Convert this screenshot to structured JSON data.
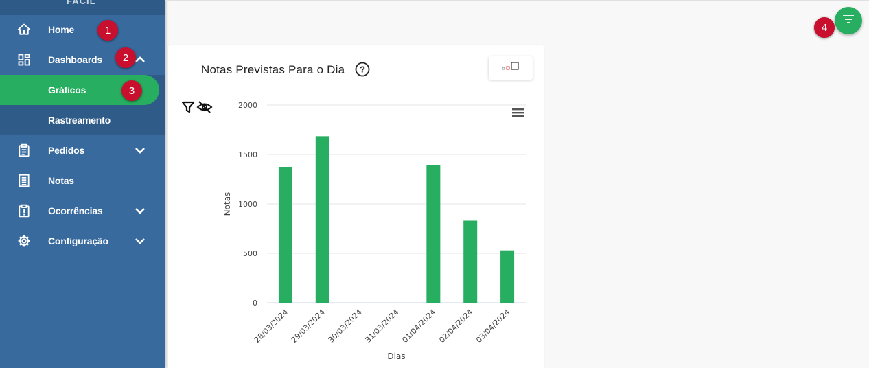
{
  "sidebar": {
    "brand": "FACIL",
    "items": [
      {
        "label": "Home",
        "icon": "home-icon"
      },
      {
        "label": "Dashboards",
        "icon": "dashboard-icon"
      },
      {
        "label": "Pedidos",
        "icon": "clipboard-icon"
      },
      {
        "label": "Notas",
        "icon": "receipt-icon"
      },
      {
        "label": "Ocorrências",
        "icon": "alert-clipboard-icon"
      },
      {
        "label": "Configuração",
        "icon": "gear-icon"
      }
    ],
    "subitems": [
      {
        "label": "Gráficos",
        "active": true
      },
      {
        "label": "Rastreamento",
        "active": false
      }
    ]
  },
  "badges": [
    "1",
    "2",
    "3",
    "4"
  ],
  "card": {
    "title": "Notas Previstas Para o Dia"
  },
  "colors": {
    "sidebar": "#386a9e",
    "accent": "#27ae60",
    "badge": "#c8102e"
  },
  "chart_data": {
    "type": "bar",
    "categories": [
      "28/03/2024",
      "29/03/2024",
      "30/03/2024",
      "31/03/2024",
      "01/04/2024",
      "02/04/2024",
      "03/04/2024"
    ],
    "values": [
      1375,
      1685,
      0,
      0,
      1390,
      830,
      530
    ],
    "xlabel": "Dias",
    "ylabel": "Notas",
    "ylim": [
      0,
      2000
    ],
    "yticks": [
      0,
      500,
      1000,
      1500,
      2000
    ],
    "grid": true,
    "color": "#27ae60"
  }
}
